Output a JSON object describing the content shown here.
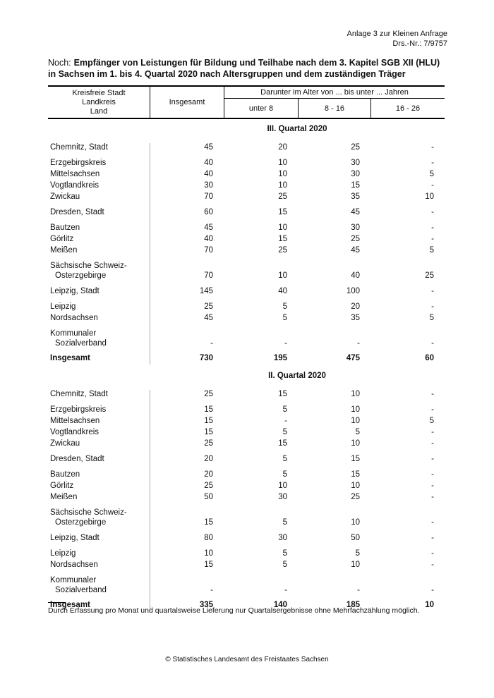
{
  "page": {
    "corner": {
      "line1": "Anlage 3 zur Kleinen Anfrage",
      "line2": "Drs.-Nr.: 7/9757"
    },
    "title": {
      "prefix": "Noch:",
      "line1": "Empfänger von Leistungen für Bildung und Teilhabe nach dem 3. Kapitel SGB XII (HLU)",
      "line2": "in Sachsen im 1. bis 4. Quartal 2020 nach Altersgruppen und dem zuständigen Träger"
    },
    "footnote": "Durch Erfassung pro Monat und quartalsweise Lieferung nur Quartalsergebnisse ohne Mehrfachzählung möglich.",
    "footer": "© Statistisches Landesamt des Freistaates Sachsen"
  },
  "table": {
    "header": {
      "col1_lines": [
        "Kreisfreie Stadt",
        "Landkreis",
        "Land"
      ],
      "col2": "Insgesamt",
      "group": "Darunter im Alter von ... bis unter ... Jahren",
      "subcols": [
        "unter 8",
        "8 - 16",
        "16 - 26"
      ]
    },
    "sections": [
      {
        "title": "III. Quartal 2020",
        "rows": [
          {
            "label": [
              "Chemnitz, Stadt"
            ],
            "values": [
              "45",
              "20",
              "25",
              "-"
            ],
            "group_start": true
          },
          {
            "label": [
              "Erzgebirgskreis"
            ],
            "values": [
              "40",
              "10",
              "30",
              "-"
            ],
            "group_start": true
          },
          {
            "label": [
              "Mittelsachsen"
            ],
            "values": [
              "40",
              "10",
              "30",
              "5"
            ]
          },
          {
            "label": [
              "Vogtlandkreis"
            ],
            "values": [
              "30",
              "10",
              "15",
              "-"
            ]
          },
          {
            "label": [
              "Zwickau"
            ],
            "values": [
              "70",
              "25",
              "35",
              "10"
            ]
          },
          {
            "label": [
              "Dresden, Stadt"
            ],
            "values": [
              "60",
              "15",
              "45",
              "-"
            ],
            "group_start": true
          },
          {
            "label": [
              "Bautzen"
            ],
            "values": [
              "45",
              "10",
              "30",
              "-"
            ],
            "group_start": true
          },
          {
            "label": [
              "Görlitz"
            ],
            "values": [
              "40",
              "15",
              "25",
              "-"
            ]
          },
          {
            "label": [
              "Meißen"
            ],
            "values": [
              "70",
              "25",
              "45",
              "5"
            ]
          },
          {
            "label": [
              "Sächsische Schweiz-",
              "Osterzgebirge"
            ],
            "values": [
              "70",
              "10",
              "40",
              "25"
            ],
            "group_start": true
          },
          {
            "label": [
              "Leipzig, Stadt"
            ],
            "values": [
              "145",
              "40",
              "100",
              "-"
            ],
            "group_start": true
          },
          {
            "label": [
              "Leipzig"
            ],
            "values": [
              "25",
              "5",
              "20",
              "-"
            ],
            "group_start": true
          },
          {
            "label": [
              "Nordsachsen"
            ],
            "values": [
              "45",
              "5",
              "35",
              "5"
            ]
          },
          {
            "label": [
              "Kommunaler",
              "Sozialverband"
            ],
            "values": [
              "-",
              "-",
              "-",
              "-"
            ],
            "group_start": true
          },
          {
            "label": [
              "Insgesamt"
            ],
            "values": [
              "730",
              "195",
              "475",
              "60"
            ],
            "bold": true
          }
        ]
      },
      {
        "title": "II. Quartal 2020",
        "rows": [
          {
            "label": [
              "Chemnitz, Stadt"
            ],
            "values": [
              "25",
              "15",
              "10",
              "-"
            ],
            "group_start": true
          },
          {
            "label": [
              "Erzgebirgskreis"
            ],
            "values": [
              "15",
              "5",
              "10",
              "-"
            ],
            "group_start": true
          },
          {
            "label": [
              "Mittelsachsen"
            ],
            "values": [
              "15",
              "-",
              "10",
              "5"
            ]
          },
          {
            "label": [
              "Vogtlandkreis"
            ],
            "values": [
              "15",
              "5",
              "5",
              "-"
            ]
          },
          {
            "label": [
              "Zwickau"
            ],
            "values": [
              "25",
              "15",
              "10",
              "-"
            ]
          },
          {
            "label": [
              "Dresden, Stadt"
            ],
            "values": [
              "20",
              "5",
              "15",
              "-"
            ],
            "group_start": true
          },
          {
            "label": [
              "Bautzen"
            ],
            "values": [
              "20",
              "5",
              "15",
              "-"
            ],
            "group_start": true
          },
          {
            "label": [
              "Görlitz"
            ],
            "values": [
              "25",
              "10",
              "10",
              "-"
            ]
          },
          {
            "label": [
              "Meißen"
            ],
            "values": [
              "50",
              "30",
              "25",
              "-"
            ]
          },
          {
            "label": [
              "Sächsische Schweiz-",
              "Osterzgebirge"
            ],
            "values": [
              "15",
              "5",
              "10",
              "-"
            ],
            "group_start": true
          },
          {
            "label": [
              "Leipzig, Stadt"
            ],
            "values": [
              "80",
              "30",
              "50",
              "-"
            ],
            "group_start": true
          },
          {
            "label": [
              "Leipzig"
            ],
            "values": [
              "10",
              "5",
              "5",
              "-"
            ],
            "group_start": true
          },
          {
            "label": [
              "Nordsachsen"
            ],
            "values": [
              "15",
              "5",
              "10",
              "-"
            ]
          },
          {
            "label": [
              "Kommunaler",
              "Sozialverband"
            ],
            "values": [
              "-",
              "-",
              "-",
              "-"
            ],
            "group_start": true
          },
          {
            "label": [
              "Insgesamt"
            ],
            "values": [
              "335",
              "140",
              "185",
              "10"
            ],
            "bold": true
          }
        ]
      }
    ]
  },
  "colors": {
    "text": "#111111",
    "header_border": "#000000",
    "body_divider": "#aaaaaa",
    "page_background": "#ffffff"
  }
}
